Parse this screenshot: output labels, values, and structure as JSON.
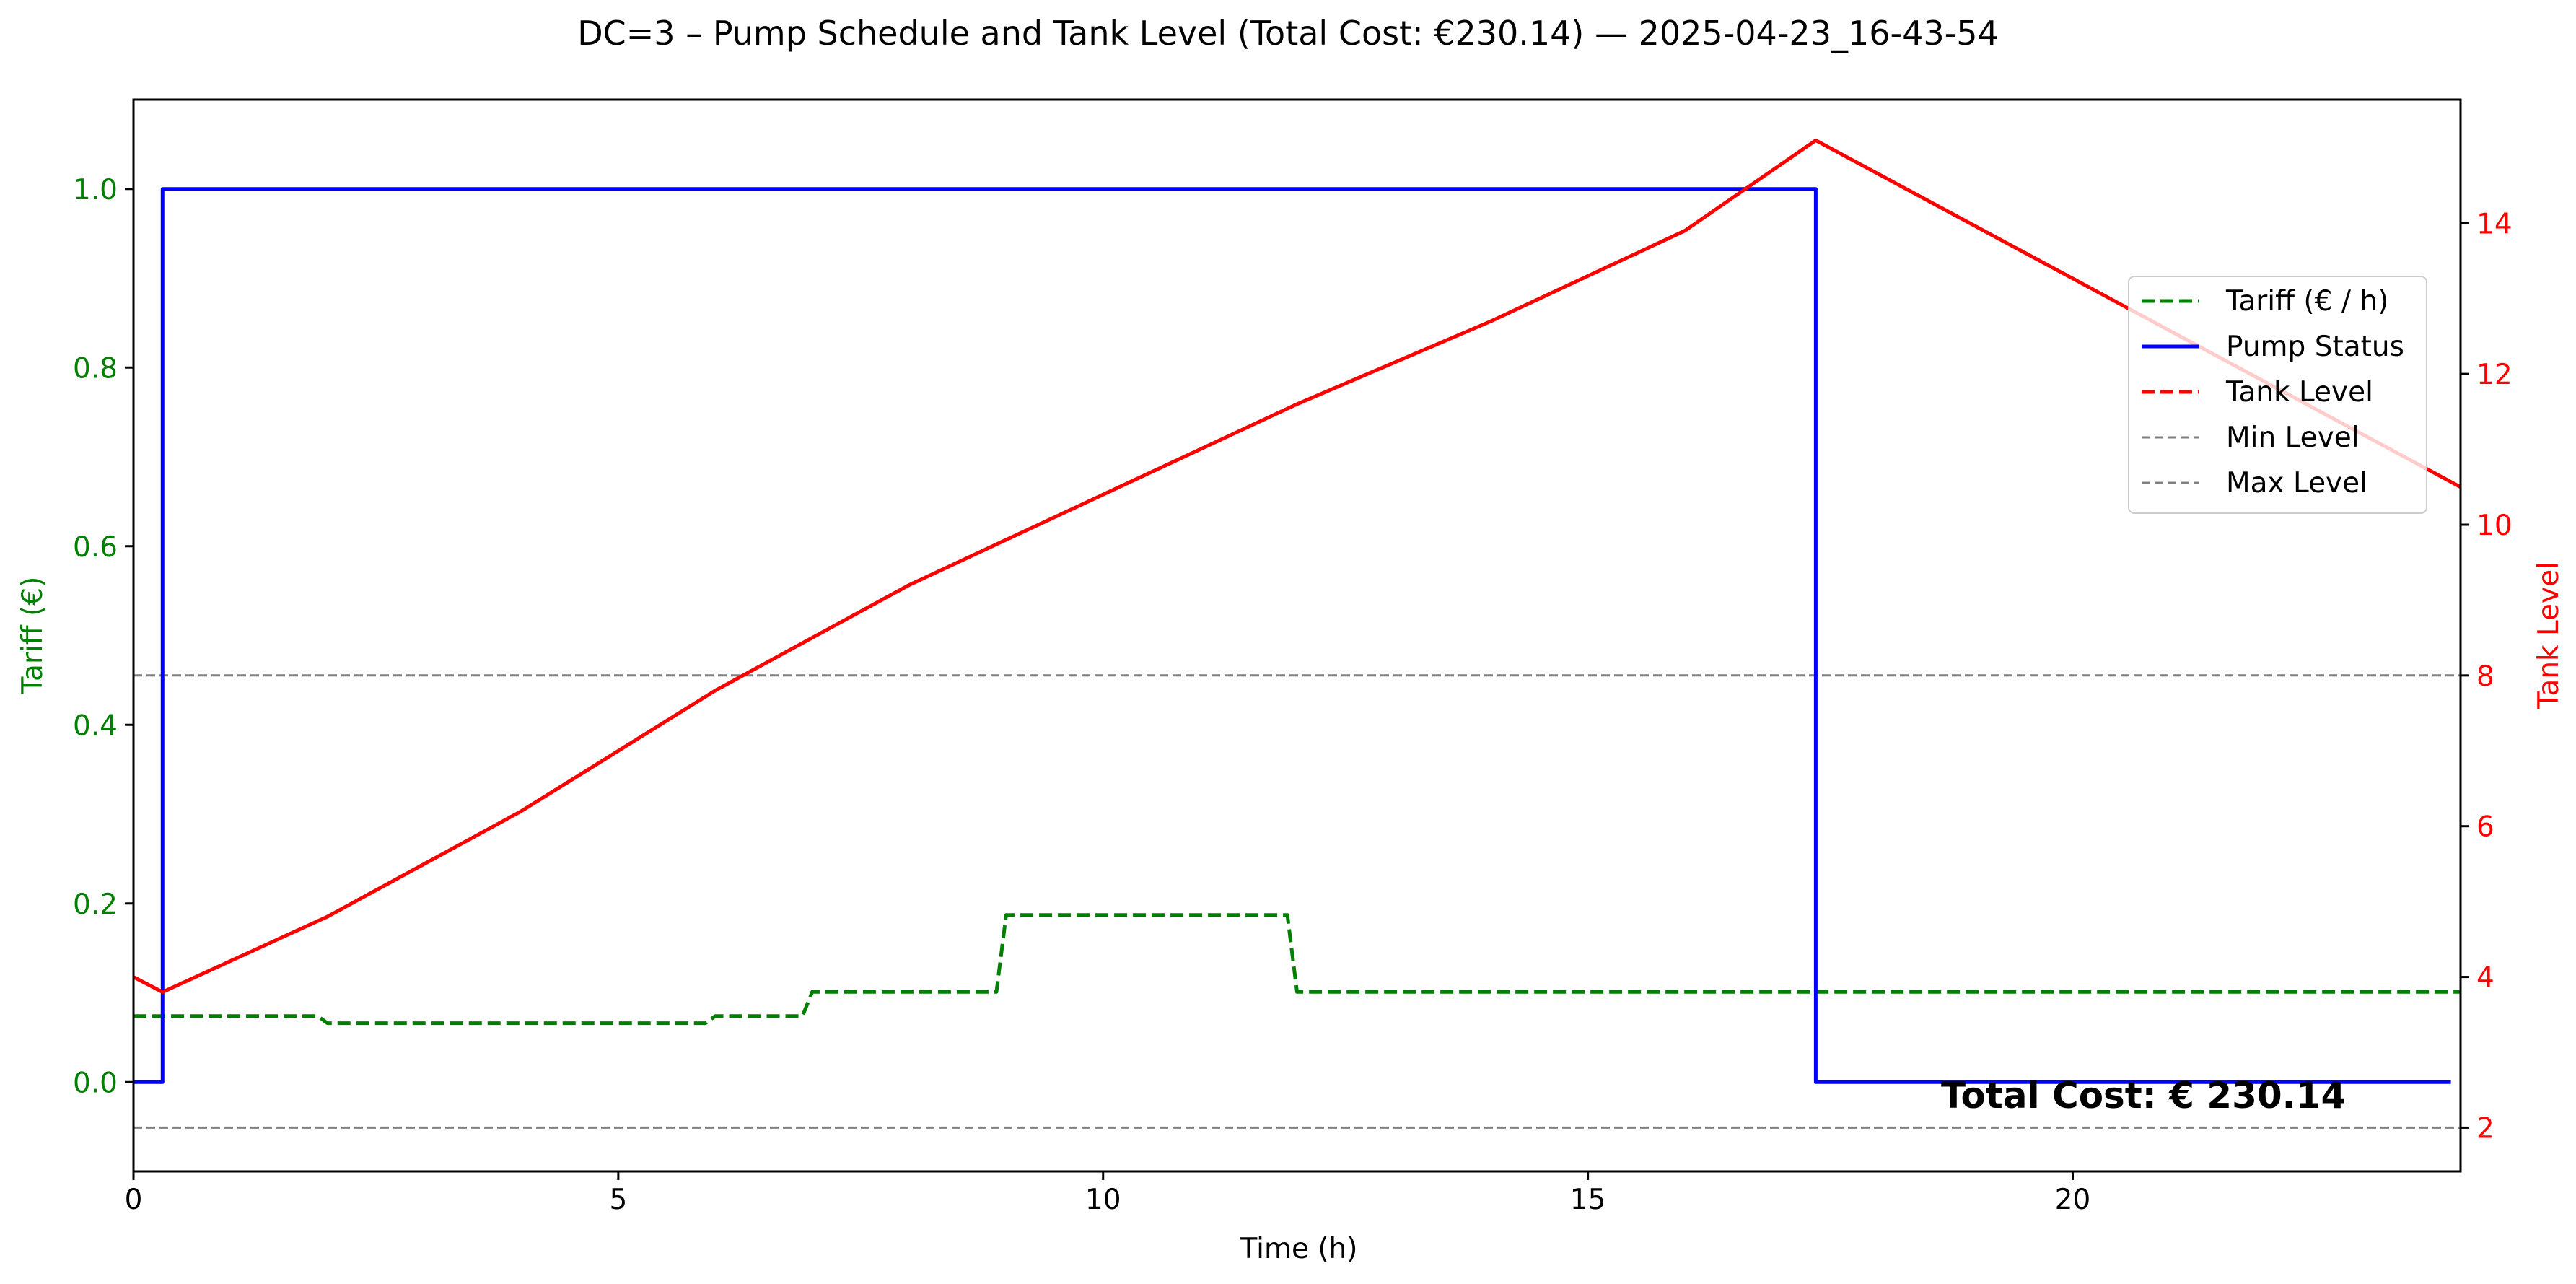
{
  "chart_data": {
    "type": "line",
    "title": "DC=3 – Pump Schedule and Tank Level (Total Cost: €230.14) — 2025-04-23_16-43-54",
    "xlabel": "Time (h)",
    "ylabel_left": "Tariff (€)",
    "ylabel_right": "Tank Level",
    "xlim": [
      0,
      24
    ],
    "ylim_left": [
      -0.1,
      1.1
    ],
    "ylim_right": [
      1.42,
      15.64
    ],
    "x_ticks": [
      0,
      5,
      10,
      15,
      20
    ],
    "x_tick_labels": [
      "0",
      "5",
      "10",
      "15",
      "20"
    ],
    "y_left_ticks": [
      0.0,
      0.2,
      0.4,
      0.6,
      0.8,
      1.0
    ],
    "y_left_tick_labels": [
      "0.0",
      "0.2",
      "0.4",
      "0.6",
      "0.8",
      "1.0"
    ],
    "y_right_ticks": [
      2,
      4,
      6,
      8,
      10,
      12,
      14
    ],
    "y_right_tick_labels": [
      "2",
      "4",
      "6",
      "8",
      "10",
      "12",
      "14"
    ],
    "grid": false,
    "legend_position": "upper-right",
    "annotation": "Total Cost: € 230.14",
    "series": [
      {
        "name": "Tariff (€ / h)",
        "axis": "left",
        "style": "dashed",
        "color": "#008000",
        "x": [
          0,
          1.9,
          2.0,
          5.9,
          6.0,
          6.9,
          7.0,
          8.9,
          9.0,
          11.9,
          12.0,
          24
        ],
        "y": [
          0.074,
          0.074,
          0.066,
          0.066,
          0.074,
          0.074,
          0.101,
          0.101,
          0.187,
          0.187,
          0.101,
          0.101
        ]
      },
      {
        "name": "Pump Status",
        "axis": "left",
        "style": "solid",
        "color": "#0000ff",
        "x": [
          0,
          0.3,
          0.3,
          17.35,
          17.35,
          23.9
        ],
        "y": [
          0,
          0,
          1,
          1,
          0,
          0
        ]
      },
      {
        "name": "Tank Level",
        "axis": "right",
        "style": "solid",
        "legend_style": "dashed",
        "color": "#ff0000",
        "x": [
          0,
          0.3,
          2,
          4,
          6,
          8,
          10,
          12,
          14,
          16,
          17.35,
          24
        ],
        "y": [
          4.0,
          3.8,
          4.8,
          6.2,
          7.8,
          9.2,
          10.4,
          11.6,
          12.7,
          13.9,
          15.1,
          10.5
        ]
      },
      {
        "name": "Min Level",
        "axis": "right",
        "style": "dashed",
        "color": "#808080",
        "x": [
          0,
          24
        ],
        "y": [
          2,
          2
        ]
      },
      {
        "name": "Max Level",
        "axis": "right",
        "style": "dashed",
        "color": "#808080",
        "x": [
          0,
          24
        ],
        "y": [
          8,
          8
        ]
      }
    ],
    "colors": {
      "left_axis": "#008000",
      "right_axis": "#ff0000",
      "axes": "#000000",
      "text": "#000000"
    }
  }
}
